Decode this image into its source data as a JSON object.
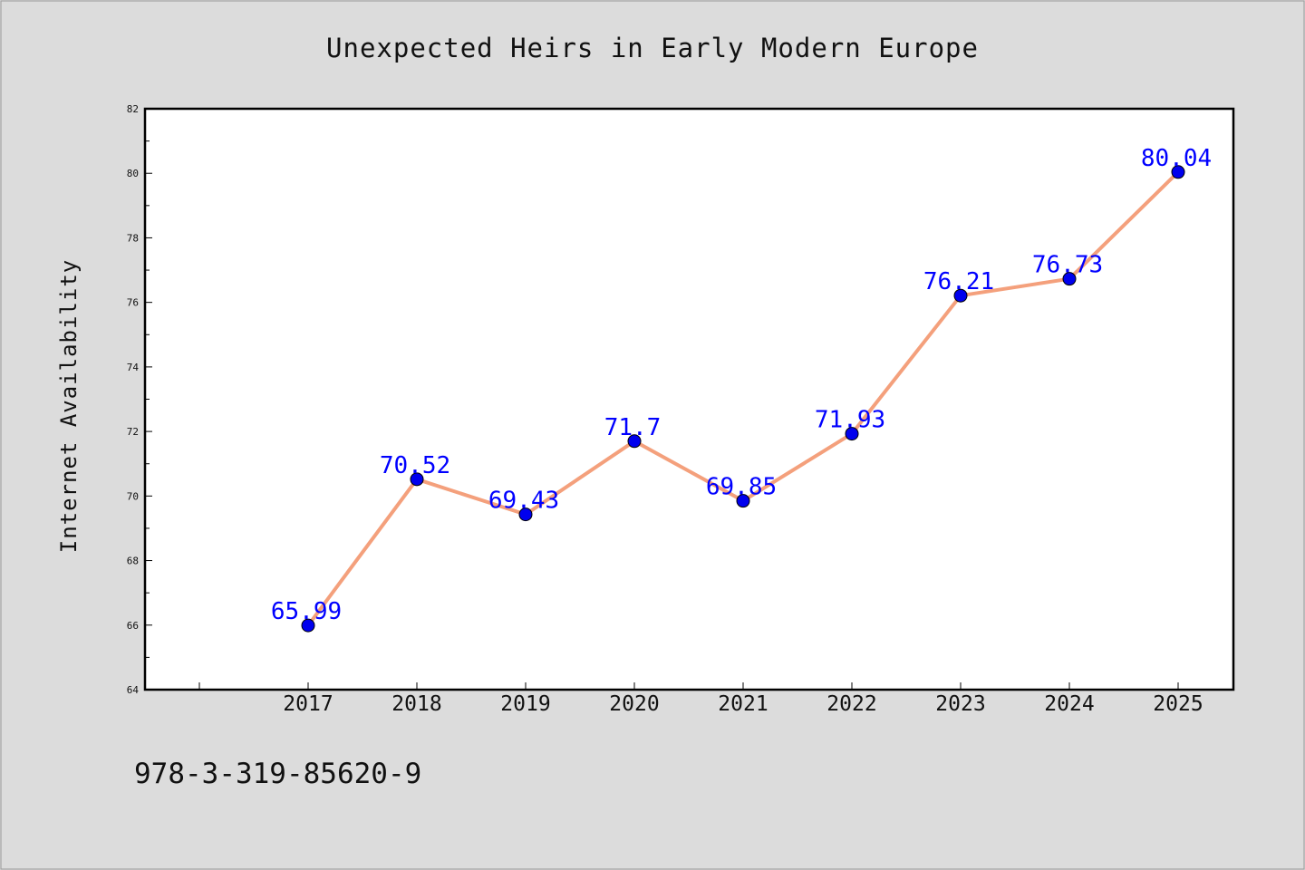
{
  "chart_data": {
    "type": "line",
    "title": "Unexpected Heirs in Early Modern Europe",
    "xlabel": "",
    "ylabel": "Internet Availability",
    "categories": [
      "2017",
      "2018",
      "2019",
      "2020",
      "2021",
      "2022",
      "2023",
      "2024",
      "2025"
    ],
    "series": [
      {
        "values": [
          65.99,
          70.52,
          69.43,
          71.7,
          69.85,
          71.93,
          76.21,
          76.73,
          80.04
        ],
        "labels": [
          "65.99",
          "70.52",
          "69.43",
          "71.7",
          "69.85",
          "71.93",
          "76.21",
          "76.73",
          "80.04"
        ],
        "line_color": "#f4a07c",
        "marker_color": "#0000ee"
      }
    ],
    "ylim": [
      64,
      82
    ],
    "yticks": [
      "64",
      "66",
      "68",
      "70",
      "72",
      "74",
      "76",
      "78",
      "80",
      "82"
    ],
    "grid": false,
    "legend": "none"
  },
  "footer": {
    "isbn": "978-3-319-85620-9"
  },
  "colors": {
    "background": "#dcdcdc",
    "plot_area": "#ffffff",
    "label": "#0000ff"
  }
}
